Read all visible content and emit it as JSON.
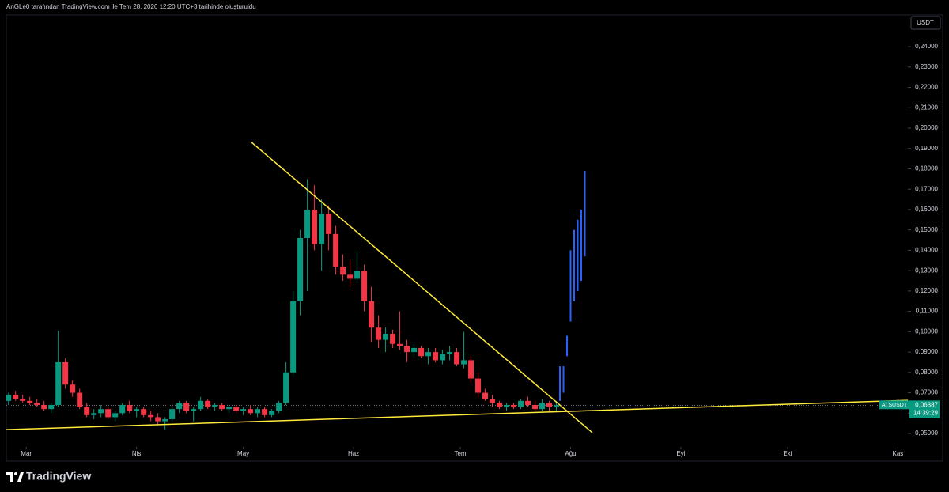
{
  "header": "AnGLe0 tarafından TradingView.com ile Tem 28, 2026 12:20 UTC+3 tarihinde oluşturuldu",
  "brand": "TradingView",
  "chart_data": {
    "type": "candlestick",
    "currency": "USDT",
    "symbol": "ATSUSDT",
    "last_price": {
      "value": 0.06387,
      "label": "0,06387"
    },
    "countdown": "14:39:29",
    "xlim": [
      -5.6,
      247.8
    ],
    "xticks": [
      {
        "value": 0,
        "label": "Mar"
      },
      {
        "value": 31,
        "label": "Nis"
      },
      {
        "value": 61,
        "label": "May"
      },
      {
        "value": 92,
        "label": "Haz"
      },
      {
        "value": 122,
        "label": "Tem"
      },
      {
        "value": 153,
        "label": "Ağu"
      },
      {
        "value": 184,
        "label": "Eyl"
      },
      {
        "value": 214,
        "label": "Eki"
      },
      {
        "value": 245,
        "label": "Kas"
      }
    ],
    "ylim": [
      0.0434,
      0.2552
    ],
    "yticks": [
      {
        "value": 0.05,
        "label": "0,05000"
      },
      {
        "value": 0.06,
        "label": "0,06000"
      },
      {
        "value": 0.07,
        "label": "0,07000"
      },
      {
        "value": 0.08,
        "label": "0,08000"
      },
      {
        "value": 0.09,
        "label": "0,09000"
      },
      {
        "value": 0.1,
        "label": "0,10000"
      },
      {
        "value": 0.11,
        "label": "0,11000"
      },
      {
        "value": 0.12,
        "label": "0,12000"
      },
      {
        "value": 0.13,
        "label": "0,13000"
      },
      {
        "value": 0.14,
        "label": "0,14000"
      },
      {
        "value": 0.15,
        "label": "0,15000"
      },
      {
        "value": 0.16,
        "label": "0,16000"
      },
      {
        "value": 0.17,
        "label": "0,17000"
      },
      {
        "value": 0.18,
        "label": "0,18000"
      },
      {
        "value": 0.19,
        "label": "0,19000"
      },
      {
        "value": 0.2,
        "label": "0,20000"
      },
      {
        "value": 0.21,
        "label": "0,21000"
      },
      {
        "value": 0.22,
        "label": "0,22000"
      },
      {
        "value": 0.23,
        "label": "0,23000"
      },
      {
        "value": 0.24,
        "label": "0,24000"
      }
    ],
    "series": [
      {
        "up_color": "#089981",
        "down_color": "#f23645",
        "x": [
          -5,
          -3,
          -1,
          1,
          3,
          5,
          7,
          9,
          11,
          13,
          15,
          17,
          19,
          21,
          23,
          25,
          27,
          29,
          31,
          33,
          35,
          37,
          39,
          41,
          43,
          45,
          47,
          49,
          51,
          53,
          55,
          57,
          59,
          61,
          63,
          65,
          67,
          69,
          71,
          73,
          75,
          77,
          79,
          81,
          83,
          85,
          87,
          89,
          91,
          93,
          95,
          97,
          99,
          101,
          103,
          105,
          107,
          109,
          111,
          113,
          115,
          117,
          119,
          121,
          123,
          125,
          127,
          129,
          131,
          133,
          135,
          137,
          139,
          141,
          143,
          145,
          147,
          149
        ],
        "ohlc": [
          [
            0.066,
            0.07,
            0.064,
            0.069
          ],
          [
            0.069,
            0.071,
            0.066,
            0.067
          ],
          [
            0.067,
            0.069,
            0.065,
            0.066
          ],
          [
            0.066,
            0.068,
            0.064,
            0.065
          ],
          [
            0.065,
            0.067,
            0.063,
            0.064
          ],
          [
            0.064,
            0.066,
            0.061,
            0.062
          ],
          [
            0.062,
            0.065,
            0.06,
            0.064
          ],
          [
            0.064,
            0.1005,
            0.063,
            0.085
          ],
          [
            0.085,
            0.087,
            0.072,
            0.074
          ],
          [
            0.074,
            0.076,
            0.068,
            0.07
          ],
          [
            0.07,
            0.072,
            0.062,
            0.063
          ],
          [
            0.063,
            0.065,
            0.058,
            0.059
          ],
          [
            0.059,
            0.062,
            0.057,
            0.06
          ],
          [
            0.06,
            0.064,
            0.058,
            0.062
          ],
          [
            0.062,
            0.063,
            0.057,
            0.058
          ],
          [
            0.058,
            0.061,
            0.056,
            0.06
          ],
          [
            0.06,
            0.065,
            0.059,
            0.064
          ],
          [
            0.064,
            0.066,
            0.06,
            0.061
          ],
          [
            0.061,
            0.063,
            0.058,
            0.062
          ],
          [
            0.062,
            0.063,
            0.058,
            0.059
          ],
          [
            0.059,
            0.061,
            0.056,
            0.058
          ],
          [
            0.058,
            0.06,
            0.054,
            0.056
          ],
          [
            0.056,
            0.058,
            0.052,
            0.057
          ],
          [
            0.057,
            0.063,
            0.056,
            0.062
          ],
          [
            0.062,
            0.066,
            0.06,
            0.065
          ],
          [
            0.065,
            0.066,
            0.06,
            0.061
          ],
          [
            0.061,
            0.063,
            0.056,
            0.062
          ],
          [
            0.062,
            0.068,
            0.061,
            0.066
          ],
          [
            0.066,
            0.067,
            0.062,
            0.063
          ],
          [
            0.063,
            0.065,
            0.061,
            0.064
          ],
          [
            0.064,
            0.065,
            0.061,
            0.062
          ],
          [
            0.062,
            0.064,
            0.06,
            0.063
          ],
          [
            0.063,
            0.064,
            0.06,
            0.061
          ],
          [
            0.061,
            0.063,
            0.059,
            0.062
          ],
          [
            0.062,
            0.064,
            0.059,
            0.06
          ],
          [
            0.06,
            0.063,
            0.058,
            0.062
          ],
          [
            0.062,
            0.063,
            0.058,
            0.059
          ],
          [
            0.059,
            0.062,
            0.058,
            0.061
          ],
          [
            0.061,
            0.066,
            0.06,
            0.065
          ],
          [
            0.065,
            0.085,
            0.064,
            0.08
          ],
          [
            0.08,
            0.12,
            0.078,
            0.115
          ],
          [
            0.115,
            0.15,
            0.108,
            0.146
          ],
          [
            0.146,
            0.175,
            0.12,
            0.16
          ],
          [
            0.16,
            0.172,
            0.14,
            0.143
          ],
          [
            0.143,
            0.165,
            0.13,
            0.158
          ],
          [
            0.158,
            0.162,
            0.14,
            0.148
          ],
          [
            0.148,
            0.152,
            0.128,
            0.132
          ],
          [
            0.132,
            0.138,
            0.125,
            0.128
          ],
          [
            0.128,
            0.135,
            0.122,
            0.126
          ],
          [
            0.126,
            0.14,
            0.124,
            0.13
          ],
          [
            0.13,
            0.133,
            0.11,
            0.115
          ],
          [
            0.115,
            0.122,
            0.095,
            0.102
          ],
          [
            0.102,
            0.108,
            0.092,
            0.096
          ],
          [
            0.096,
            0.102,
            0.09,
            0.099
          ],
          [
            0.099,
            0.101,
            0.092,
            0.094
          ],
          [
            0.094,
            0.11,
            0.091,
            0.093
          ],
          [
            0.093,
            0.096,
            0.085,
            0.09
          ],
          [
            0.09,
            0.094,
            0.087,
            0.092
          ],
          [
            0.092,
            0.093,
            0.087,
            0.088
          ],
          [
            0.088,
            0.092,
            0.084,
            0.09
          ],
          [
            0.09,
            0.092,
            0.085,
            0.086
          ],
          [
            0.086,
            0.091,
            0.084,
            0.089
          ],
          [
            0.089,
            0.093,
            0.086,
            0.09
          ],
          [
            0.09,
            0.092,
            0.083,
            0.084
          ],
          [
            0.084,
            0.1,
            0.082,
            0.086
          ],
          [
            0.086,
            0.088,
            0.075,
            0.077
          ],
          [
            0.077,
            0.08,
            0.068,
            0.07
          ],
          [
            0.07,
            0.072,
            0.066,
            0.067
          ],
          [
            0.067,
            0.069,
            0.063,
            0.065
          ],
          [
            0.065,
            0.066,
            0.062,
            0.063
          ],
          [
            0.063,
            0.065,
            0.061,
            0.064
          ],
          [
            0.064,
            0.065,
            0.062,
            0.063
          ],
          [
            0.063,
            0.067,
            0.062,
            0.066
          ],
          [
            0.066,
            0.068,
            0.063,
            0.064
          ],
          [
            0.064,
            0.066,
            0.061,
            0.062
          ],
          [
            0.062,
            0.067,
            0.061,
            0.065
          ],
          [
            0.065,
            0.066,
            0.061,
            0.063
          ],
          [
            0.063,
            0.066,
            0.061,
            0.0639
          ]
        ]
      },
      {
        "up_color": "#2962ff",
        "down_color": "#2962ff",
        "x": [
          150,
          151,
          152,
          153,
          154,
          155,
          156,
          157
        ],
        "ohlc": [
          [
            0.066,
            0.083,
            0.066,
            0.083
          ],
          [
            0.07,
            0.083,
            0.07,
            0.083
          ],
          [
            0.088,
            0.098,
            0.088,
            0.098
          ],
          [
            0.105,
            0.14,
            0.105,
            0.14
          ],
          [
            0.115,
            0.15,
            0.115,
            0.15
          ],
          [
            0.12,
            0.155,
            0.12,
            0.155
          ],
          [
            0.125,
            0.16,
            0.125,
            0.16
          ],
          [
            0.137,
            0.179,
            0.137,
            0.179
          ]
        ]
      }
    ],
    "trendlines": [
      {
        "color": "#ffeb3b",
        "x": [
          63.1,
          159.1
        ],
        "y": [
          0.1934,
          0.0504
        ]
      },
      {
        "color": "#ffeb3b",
        "x": [
          -5.6,
          247.8
        ],
        "y": [
          0.0519,
          0.0663
        ]
      }
    ]
  }
}
